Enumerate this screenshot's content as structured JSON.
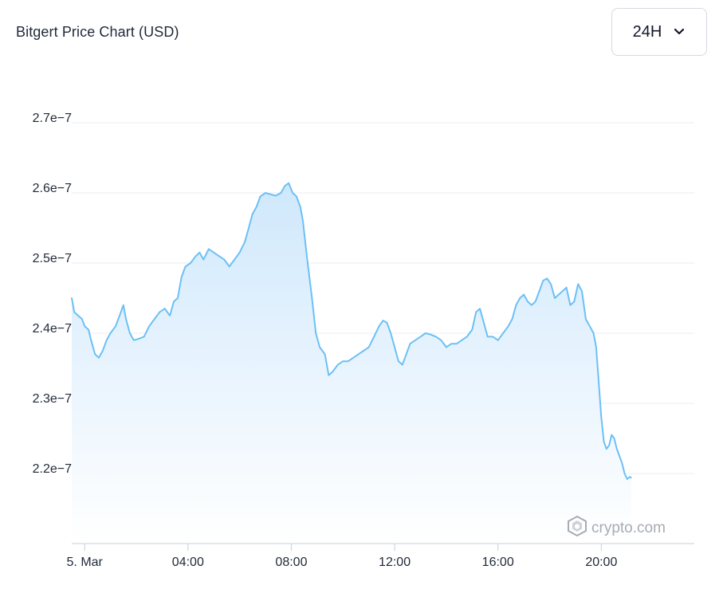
{
  "header": {
    "title": "Bitgert Price Chart (USD)",
    "range_label": "24H"
  },
  "watermark": {
    "text": "crypto.com"
  },
  "colors": {
    "line": "#6cc0f5",
    "fill_top": "#cfe8fc",
    "fill_bottom": "#ffffff",
    "grid": "#e9ecf0",
    "axis": "#c9ced6"
  },
  "icons": {
    "dropdown": "chevron-down-icon",
    "logo": "crypto-com-logo-icon"
  },
  "chart_data": {
    "type": "area",
    "title": "Bitgert Price Chart (USD)",
    "xlabel": "",
    "ylabel": "",
    "ylim": [
      2.1e-07,
      2.75e-07
    ],
    "xlim_hours": [
      23.5,
      47.6
    ],
    "yticks": [
      {
        "value": 2.2e-07,
        "label": "2.2e−7"
      },
      {
        "value": 2.3e-07,
        "label": "2.3e−7"
      },
      {
        "value": 2.4e-07,
        "label": "2.4e−7"
      },
      {
        "value": 2.5e-07,
        "label": "2.5e−7"
      },
      {
        "value": 2.6e-07,
        "label": "2.6e−7"
      },
      {
        "value": 2.7e-07,
        "label": "2.7e−7"
      }
    ],
    "xticks": [
      {
        "value": 24,
        "label": "5. Mar"
      },
      {
        "value": 28,
        "label": "04:00"
      },
      {
        "value": 32,
        "label": "08:00"
      },
      {
        "value": 36,
        "label": "12:00"
      },
      {
        "value": 40,
        "label": "16:00"
      },
      {
        "value": 44,
        "label": "20:00"
      }
    ],
    "grid": true,
    "series": [
      {
        "points": [
          [
            23.5,
            2.45
          ],
          [
            23.6,
            2.43
          ],
          [
            23.75,
            2.425
          ],
          [
            23.9,
            2.42
          ],
          [
            24.0,
            2.41
          ],
          [
            24.15,
            2.405
          ],
          [
            24.25,
            2.39
          ],
          [
            24.4,
            2.37
          ],
          [
            24.55,
            2.365
          ],
          [
            24.7,
            2.375
          ],
          [
            24.85,
            2.39
          ],
          [
            25.0,
            2.4
          ],
          [
            25.2,
            2.41
          ],
          [
            25.4,
            2.43
          ],
          [
            25.5,
            2.44
          ],
          [
            25.6,
            2.42
          ],
          [
            25.75,
            2.4
          ],
          [
            25.9,
            2.39
          ],
          [
            26.1,
            2.392
          ],
          [
            26.3,
            2.395
          ],
          [
            26.5,
            2.41
          ],
          [
            26.7,
            2.42
          ],
          [
            26.9,
            2.43
          ],
          [
            27.1,
            2.435
          ],
          [
            27.3,
            2.425
          ],
          [
            27.45,
            2.445
          ],
          [
            27.6,
            2.45
          ],
          [
            27.75,
            2.48
          ],
          [
            27.9,
            2.495
          ],
          [
            28.1,
            2.5
          ],
          [
            28.3,
            2.51
          ],
          [
            28.45,
            2.515
          ],
          [
            28.6,
            2.505
          ],
          [
            28.8,
            2.52
          ],
          [
            29.0,
            2.515
          ],
          [
            29.2,
            2.51
          ],
          [
            29.4,
            2.505
          ],
          [
            29.6,
            2.495
          ],
          [
            29.8,
            2.505
          ],
          [
            30.0,
            2.515
          ],
          [
            30.2,
            2.53
          ],
          [
            30.35,
            2.55
          ],
          [
            30.5,
            2.57
          ],
          [
            30.65,
            2.58
          ],
          [
            30.8,
            2.595
          ],
          [
            31.0,
            2.6
          ],
          [
            31.2,
            2.598
          ],
          [
            31.4,
            2.596
          ],
          [
            31.6,
            2.6
          ],
          [
            31.75,
            2.61
          ],
          [
            31.9,
            2.614
          ],
          [
            32.05,
            2.6
          ],
          [
            32.2,
            2.595
          ],
          [
            32.35,
            2.58
          ],
          [
            32.45,
            2.56
          ],
          [
            32.6,
            2.51
          ],
          [
            32.8,
            2.45
          ],
          [
            32.95,
            2.4
          ],
          [
            33.1,
            2.38
          ],
          [
            33.3,
            2.37
          ],
          [
            33.45,
            2.34
          ],
          [
            33.6,
            2.345
          ],
          [
            33.8,
            2.355
          ],
          [
            34.0,
            2.36
          ],
          [
            34.2,
            2.36
          ],
          [
            34.4,
            2.365
          ],
          [
            34.6,
            2.37
          ],
          [
            34.8,
            2.375
          ],
          [
            35.0,
            2.38
          ],
          [
            35.2,
            2.395
          ],
          [
            35.4,
            2.41
          ],
          [
            35.55,
            2.418
          ],
          [
            35.7,
            2.415
          ],
          [
            35.85,
            2.4
          ],
          [
            36.0,
            2.38
          ],
          [
            36.15,
            2.36
          ],
          [
            36.3,
            2.355
          ],
          [
            36.45,
            2.37
          ],
          [
            36.6,
            2.385
          ],
          [
            36.8,
            2.39
          ],
          [
            37.0,
            2.395
          ],
          [
            37.2,
            2.4
          ],
          [
            37.4,
            2.398
          ],
          [
            37.6,
            2.395
          ],
          [
            37.8,
            2.39
          ],
          [
            38.0,
            2.38
          ],
          [
            38.2,
            2.385
          ],
          [
            38.4,
            2.385
          ],
          [
            38.6,
            2.39
          ],
          [
            38.8,
            2.395
          ],
          [
            39.0,
            2.405
          ],
          [
            39.15,
            2.43
          ],
          [
            39.3,
            2.435
          ],
          [
            39.45,
            2.415
          ],
          [
            39.6,
            2.395
          ],
          [
            39.8,
            2.395
          ],
          [
            40.0,
            2.39
          ],
          [
            40.2,
            2.4
          ],
          [
            40.4,
            2.41
          ],
          [
            40.55,
            2.42
          ],
          [
            40.7,
            2.44
          ],
          [
            40.85,
            2.45
          ],
          [
            41.0,
            2.455
          ],
          [
            41.15,
            2.445
          ],
          [
            41.3,
            2.44
          ],
          [
            41.45,
            2.445
          ],
          [
            41.6,
            2.46
          ],
          [
            41.75,
            2.475
          ],
          [
            41.9,
            2.478
          ],
          [
            42.05,
            2.47
          ],
          [
            42.2,
            2.45
          ],
          [
            42.35,
            2.455
          ],
          [
            42.5,
            2.46
          ],
          [
            42.65,
            2.465
          ],
          [
            42.8,
            2.44
          ],
          [
            42.95,
            2.445
          ],
          [
            43.1,
            2.47
          ],
          [
            43.25,
            2.46
          ],
          [
            43.4,
            2.42
          ],
          [
            43.55,
            2.41
          ],
          [
            43.7,
            2.4
          ],
          [
            43.8,
            2.38
          ],
          [
            43.9,
            2.33
          ],
          [
            44.0,
            2.28
          ],
          [
            44.1,
            2.245
          ],
          [
            44.2,
            2.235
          ],
          [
            44.3,
            2.24
          ],
          [
            44.4,
            2.255
          ],
          [
            44.5,
            2.25
          ],
          [
            44.6,
            2.235
          ],
          [
            44.7,
            2.225
          ],
          [
            44.8,
            2.215
          ],
          [
            44.9,
            2.2
          ],
          [
            45.0,
            2.192
          ],
          [
            45.1,
            2.195
          ],
          [
            45.15,
            2.194
          ]
        ]
      }
    ],
    "value_scale": 1e-07
  }
}
